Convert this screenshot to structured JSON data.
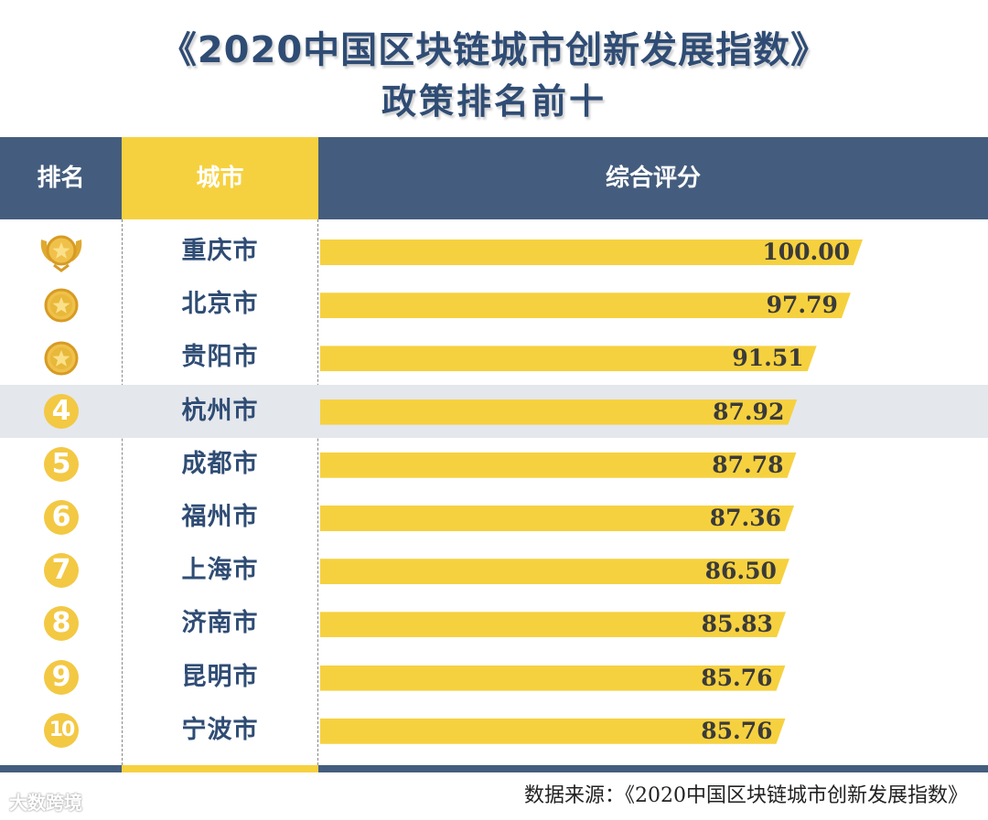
{
  "title_line1": "《2020中国区块链城市创新发展指数》",
  "title_line2": "政策排名前十",
  "headers": {
    "rank": "排名",
    "city": "城市",
    "score": "综合评分"
  },
  "source": "数据来源：《2020中国区块链城市创新发展指数》",
  "watermark": "大数跨境",
  "colors": {
    "header": "#445d7e",
    "bar": "#f6d13f",
    "title": "#2f4c74",
    "highlight_row": "#e4e7ec",
    "medal": "#e8b83a"
  },
  "chart_data": {
    "type": "bar",
    "orientation": "horizontal",
    "title": "《2020中国区块链城市创新发展指数》政策排名前十",
    "categories": [
      "重庆市",
      "北京市",
      "贵阳市",
      "杭州市",
      "成都市",
      "福州市",
      "上海市",
      "济南市",
      "昆明市",
      "宁波市"
    ],
    "ranks": [
      "1",
      "2",
      "3",
      "4",
      "5",
      "6",
      "7",
      "8",
      "9",
      "10"
    ],
    "values": [
      100.0,
      97.79,
      91.51,
      87.92,
      87.78,
      87.36,
      86.5,
      85.83,
      85.76,
      85.76
    ],
    "value_labels": [
      "100.00",
      "97.79",
      "91.51",
      "87.92",
      "87.78",
      "87.36",
      "86.50",
      "85.83",
      "85.76",
      "85.76"
    ],
    "medals": [
      "gold-winged-medal-icon",
      "star-medal-icon",
      "star-medal-icon"
    ],
    "highlighted_rank": "4",
    "xlabel": "综合评分",
    "ylabel": "城市"
  }
}
